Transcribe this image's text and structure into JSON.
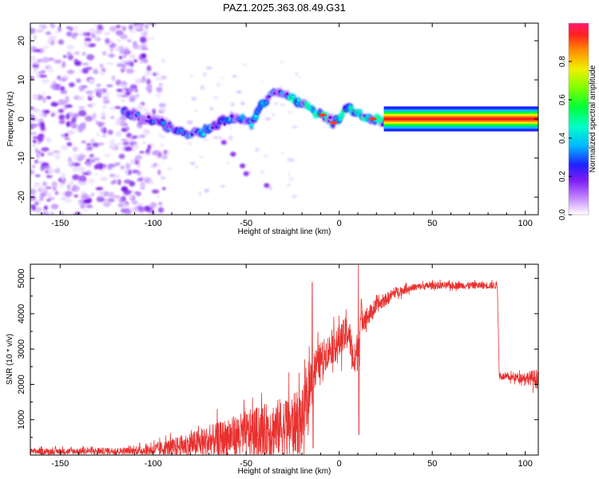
{
  "title": "PAZ1.2025.363.08.49.G31",
  "chart_data": [
    {
      "type": "heatmap",
      "xlabel": "Height of straight line (km)",
      "ylabel": "Frequency (Hz)",
      "xlim": [
        -166,
        107
      ],
      "ylim": [
        -24.5,
        24.5
      ],
      "xticks": [
        -150,
        -100,
        -50,
        0,
        50,
        100
      ],
      "yticks": [
        -20,
        -10,
        0,
        10,
        20
      ],
      "colorbar": {
        "label": "Normalized spectral amplitude",
        "range": [
          0,
          1
        ],
        "ticks": [
          "0.0",
          "0.2",
          "0.4",
          "0.6",
          "0.8"
        ]
      },
      "dominant_frequency": {
        "heights": [
          -115,
          -105,
          -95,
          -88,
          -80,
          -72,
          -65,
          -58,
          -52,
          -47,
          -42,
          -36,
          -30,
          -25,
          -20,
          -16,
          -13,
          -9,
          -6,
          -3,
          0,
          4,
          8,
          12,
          16,
          20,
          23,
          26,
          30,
          60,
          90,
          107
        ],
        "freq": [
          2,
          0,
          -1,
          -3,
          -4,
          -3,
          -1,
          0,
          0,
          -1,
          3,
          7,
          6,
          5,
          4,
          3,
          2,
          1,
          0,
          -1,
          0,
          3,
          2,
          1,
          0,
          0,
          -1,
          0,
          0,
          0,
          0,
          0
        ]
      },
      "noise_region": {
        "x_range": [
          -166,
          -100
        ],
        "y_range": [
          -24.5,
          24.5
        ]
      }
    },
    {
      "type": "line",
      "xlabel": "Height of straight line (km)",
      "ylabel": "SNR (10 * v/v)",
      "xlim": [
        -166,
        107
      ],
      "ylim": [
        0,
        5400
      ],
      "xticks": [
        -150,
        -100,
        -50,
        0,
        50,
        100
      ],
      "yticks": [
        1000,
        2000,
        3000,
        4000,
        5000
      ],
      "color": "#e8312f",
      "envelope": {
        "heights": [
          -166,
          -110,
          -100,
          -90,
          -80,
          -70,
          -60,
          -50,
          -40,
          -30,
          -20,
          -17,
          -15,
          -10,
          -5,
          0,
          5,
          8,
          10,
          12,
          15,
          20,
          30,
          40,
          50,
          60,
          70,
          80,
          85,
          86,
          90,
          100,
          107
        ],
        "snr_base": [
          100,
          120,
          150,
          220,
          300,
          380,
          500,
          600,
          700,
          800,
          950,
          1500,
          2300,
          2700,
          3000,
          3200,
          3500,
          2600,
          3000,
          3900,
          3900,
          4200,
          4600,
          4750,
          4800,
          4800,
          4800,
          4800,
          4800,
          2250,
          2200,
          2200,
          2150
        ],
        "noise_amp": [
          80,
          100,
          180,
          250,
          350,
          450,
          550,
          650,
          750,
          850,
          900,
          800,
          600,
          500,
          450,
          500,
          500,
          500,
          600,
          400,
          300,
          200,
          150,
          100,
          100,
          100,
          100,
          100,
          100,
          100,
          100,
          150,
          300
        ]
      },
      "spikes": [
        {
          "height": -14.5,
          "snr": 4880
        },
        {
          "height": -14.0,
          "snr": 200
        },
        {
          "height": 10.3,
          "snr": 5380
        },
        {
          "height": 10.6,
          "snr": 580
        },
        {
          "height": 12.0,
          "snr": 4400
        }
      ]
    }
  ]
}
